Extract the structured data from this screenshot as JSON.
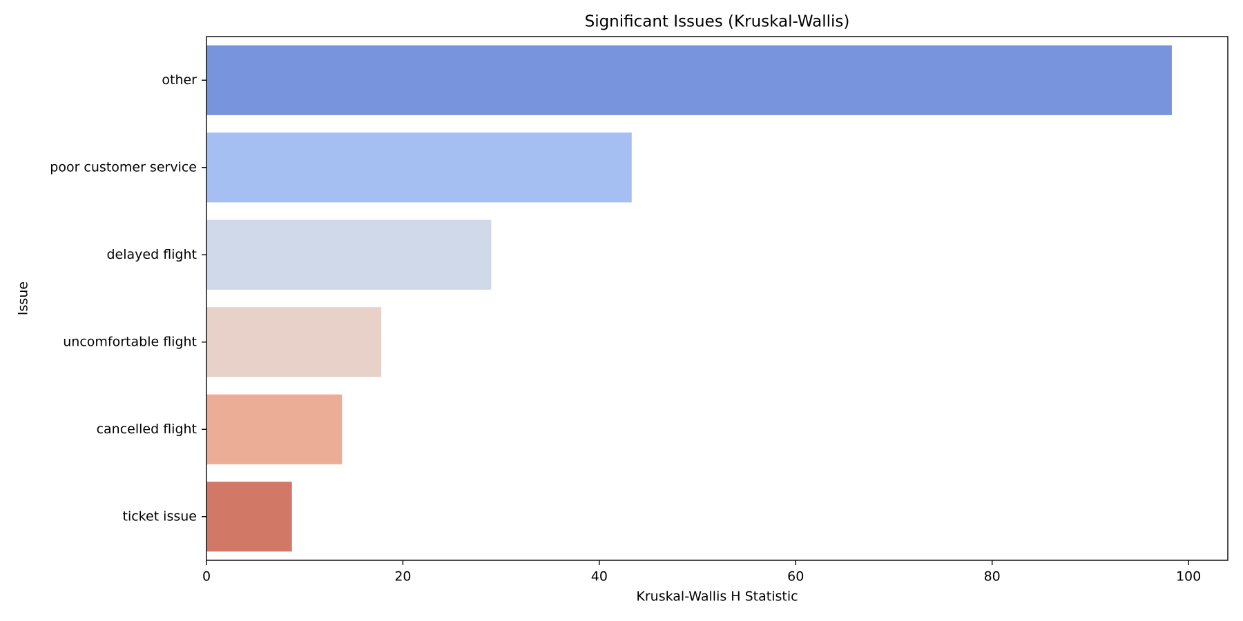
{
  "chart_data": {
    "type": "bar",
    "orientation": "horizontal",
    "title": "Significant Issues (Kruskal-Wallis)",
    "xlabel": "Kruskal-Wallis H Statistic",
    "ylabel": "Issue",
    "xlim": [
      0,
      104
    ],
    "xticks": [
      0,
      20,
      40,
      60,
      80,
      100
    ],
    "grid": false,
    "categories": [
      "other",
      "poor customer service",
      "delayed flight",
      "uncomfortable flight",
      "cancelled flight",
      "ticket issue"
    ],
    "values": [
      98.3,
      43.3,
      29.0,
      17.8,
      13.8,
      8.7
    ],
    "colors": [
      "#7894dc",
      "#a5bff3",
      "#cfd9ea",
      "#e8d1c8",
      "#ebad96",
      "#d27866"
    ]
  }
}
